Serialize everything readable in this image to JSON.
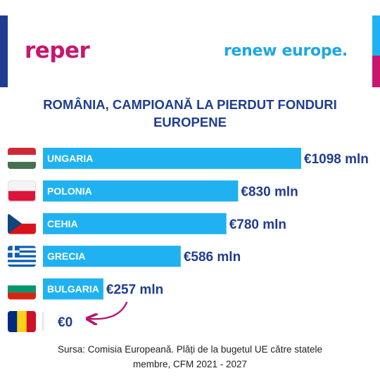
{
  "brand": {
    "left_logo": "reper",
    "right_logo": "renew europe."
  },
  "colors": {
    "bar": "#20B2F0",
    "value_text": "#1F3D8F",
    "title_text": "#1F3D8F",
    "logo_reper": "#C8166E",
    "logo_renew": "#1DA7E3",
    "edge_blue": "#1F3D8F",
    "edge_magenta": "#C8166E",
    "arrow": "#B5186E"
  },
  "chart_data": {
    "type": "bar",
    "orientation": "horizontal",
    "title": "ROMÂNIA, CAMPIOANĂ LA PIERDUT FONDURI EUROPENE",
    "title_lines": [
      "ROMÂNIA, CAMPIOANĂ LA PIERDUT FONDURI",
      "EUROPENE"
    ],
    "unit": "mln €",
    "categories": [
      "UNGARIA",
      "POLONIA",
      "CEHIA",
      "GRECIA",
      "BULGARIA",
      ""
    ],
    "values": [
      1098,
      830,
      780,
      586,
      257,
      0
    ],
    "value_labels": [
      "€1098 mln",
      "€830 mln",
      "€780 mln",
      "€586 mln",
      "€257 mln",
      "€0"
    ],
    "flag_icons": [
      "hungary-flag",
      "poland-flag",
      "czechia-flag",
      "greece-flag",
      "bulgaria-flag",
      "romania-flag"
    ],
    "annotation": "arrow from €257 mln to €0",
    "xlim": [
      0,
      1098
    ],
    "grid": false,
    "legend": "none"
  },
  "source": {
    "line1": "Sursa: Comisia Europeană. Plăți de la bugetul UE către statele",
    "line2": "membre, CFM 2021 - 2027"
  }
}
